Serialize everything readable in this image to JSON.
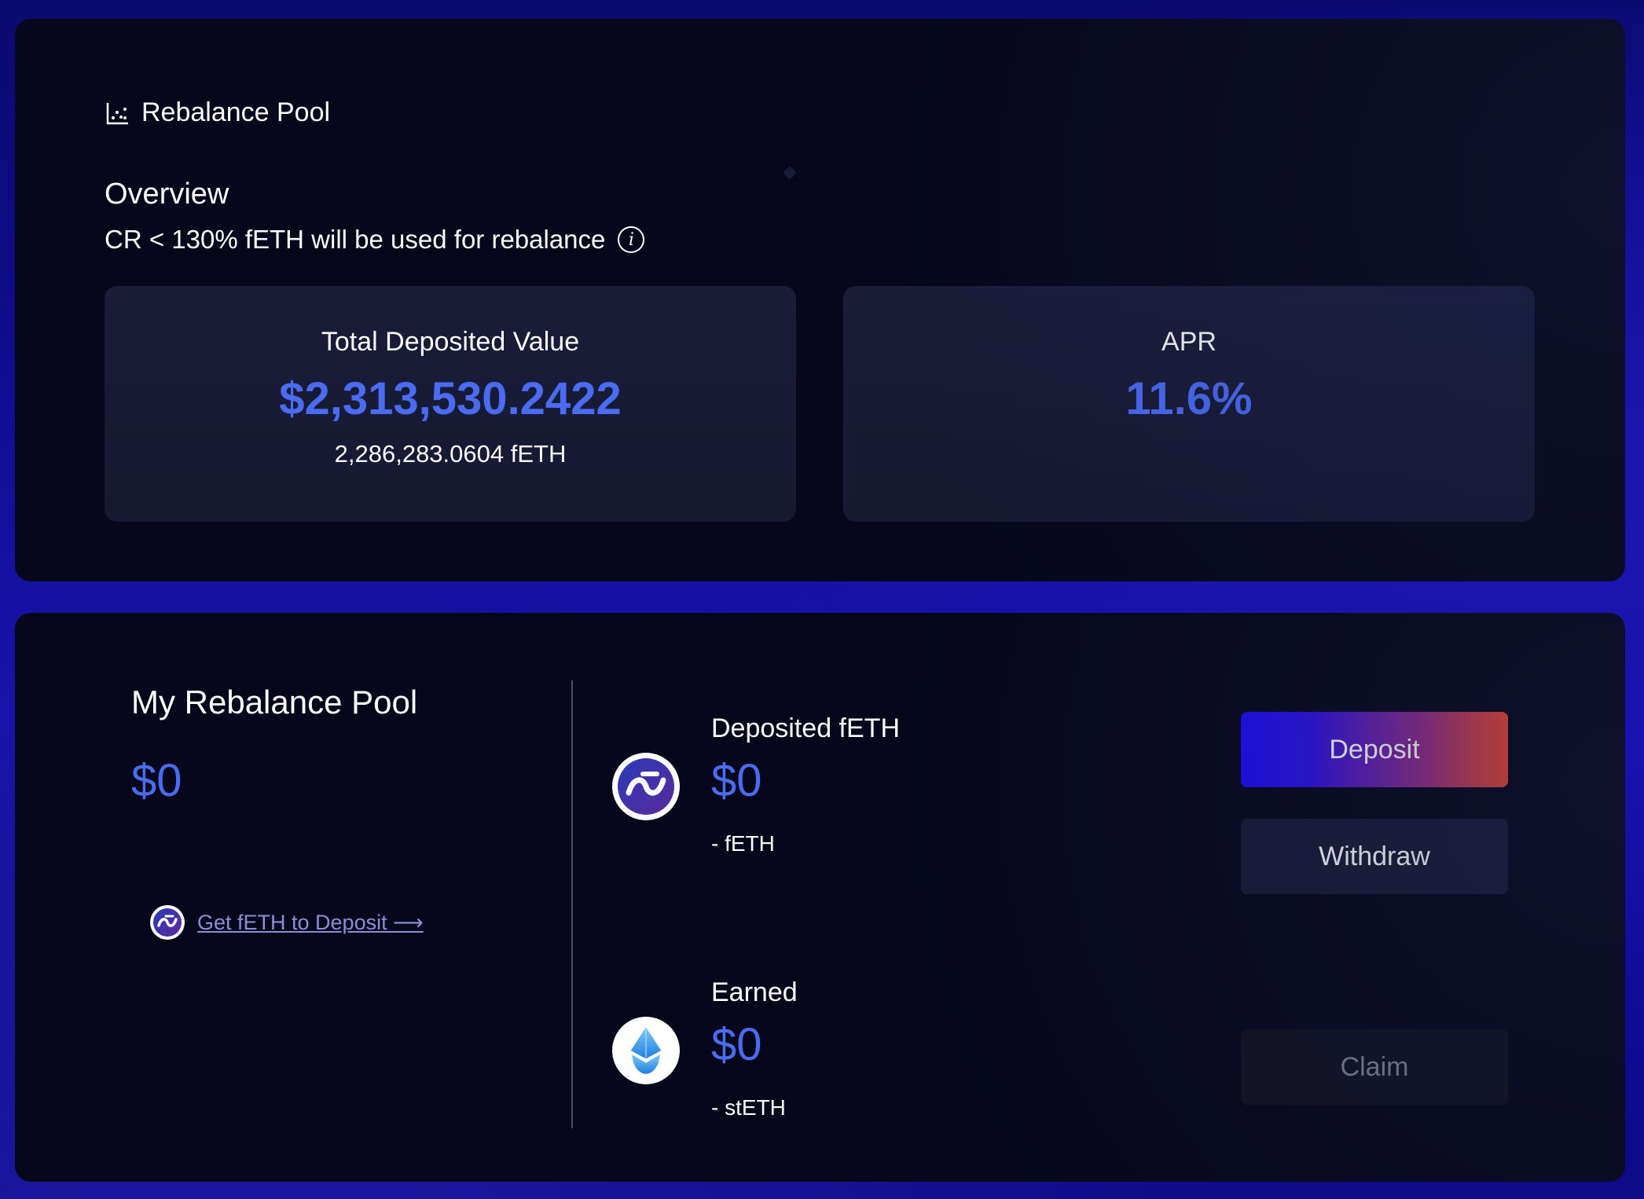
{
  "header": {
    "section_title": "Rebalance Pool",
    "section_icon": "chart-scatter-icon"
  },
  "overview": {
    "title": "Overview",
    "subtitle": "CR < 130% fETH will be used for rebalance",
    "info_icon": "info-icon"
  },
  "stats": {
    "tvl": {
      "label": "Total Deposited Value",
      "value": "$2,313,530.2422",
      "sub": "2,286,283.0604 fETH"
    },
    "apr": {
      "label": "APR",
      "value": "11.6%"
    }
  },
  "my_pool": {
    "title": "My Rebalance Pool",
    "value": "$0",
    "get_link": "Get fETH to Deposit ⟶"
  },
  "deposited": {
    "label": "Deposited fETH",
    "value": "$0",
    "sub": "- fETH",
    "icon": "feth-logo-icon"
  },
  "earned": {
    "label": "Earned",
    "value": "$0",
    "sub": "- stETH",
    "icon": "steth-logo-icon"
  },
  "actions": {
    "deposit": "Deposit",
    "withdraw": "Withdraw",
    "claim": "Claim"
  },
  "colors": {
    "accent": "#4a6cf5",
    "panel": "#06071a",
    "card": "#1a1d38",
    "deposit_gradient_start": "#1a0df0",
    "deposit_gradient_end": "#f04a2a"
  }
}
